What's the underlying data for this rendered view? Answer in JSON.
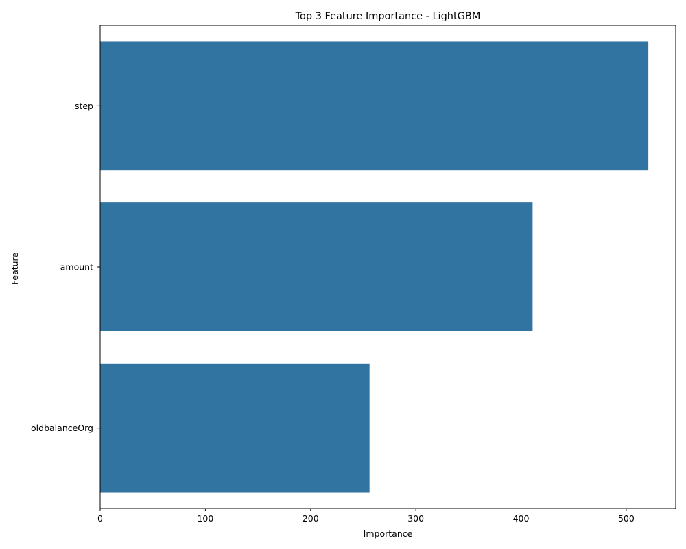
{
  "chart_data": {
    "type": "bar",
    "orientation": "horizontal",
    "title": "Top 3 Feature Importance - LightGBM",
    "xlabel": "Importance",
    "ylabel": "Feature",
    "categories": [
      "step",
      "amount",
      "oldbalanceOrg"
    ],
    "values": [
      521,
      411,
      256
    ],
    "xlim": [
      0,
      547
    ],
    "xticks": [
      0,
      100,
      200,
      300,
      400,
      500
    ],
    "grid": false,
    "legend": "none",
    "bar_color": "#3274a1"
  }
}
